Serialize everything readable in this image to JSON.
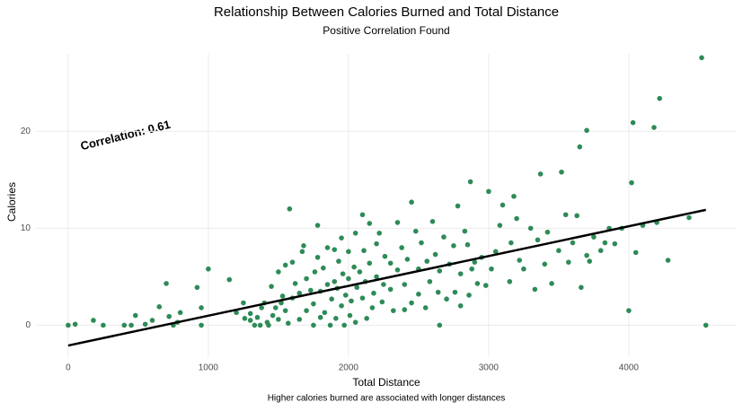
{
  "chart_data": {
    "type": "scatter",
    "title": "Relationship Between Calories Burned and Total Distance",
    "subtitle": "Positive Correlation Found",
    "x_label": "Total Distance",
    "y_label": "Calories",
    "caption": "Higher calories burned are associated with longer distances",
    "annotation": "Correlation: 0.61",
    "color": "#2e8b57",
    "xlim": [
      -230,
      4770
    ],
    "ylim": [
      -3.3,
      28
    ],
    "xticks": [
      0,
      1000,
      2000,
      3000,
      4000
    ],
    "yticks": [
      0,
      10,
      20
    ],
    "grid": true,
    "trend_line": {
      "color": "#000000",
      "x": [
        0,
        4550
      ],
      "y": [
        -2.1,
        11.9
      ]
    },
    "x": [
      0,
      50,
      180,
      250,
      400,
      450,
      480,
      550,
      600,
      650,
      700,
      720,
      750,
      780,
      800,
      1000,
      920,
      950,
      950,
      1150,
      1200,
      1250,
      1260,
      1300,
      1300,
      1330,
      1350,
      1370,
      1380,
      1400,
      1420,
      1430,
      1450,
      1460,
      1480,
      1500,
      1500,
      1520,
      1530,
      1550,
      1550,
      1570,
      1580,
      1600,
      1600,
      1620,
      1650,
      1650,
      1670,
      1680,
      1700,
      1700,
      1730,
      1750,
      1750,
      1760,
      1780,
      1780,
      1800,
      1800,
      1820,
      1830,
      1850,
      1850,
      1870,
      1880,
      1900,
      1900,
      1910,
      1920,
      1930,
      1950,
      1950,
      1960,
      1970,
      1980,
      2000,
      2000,
      2010,
      2020,
      2040,
      2050,
      2050,
      2060,
      2080,
      2100,
      2100,
      2110,
      2120,
      2130,
      2150,
      2150,
      2170,
      2180,
      2200,
      2200,
      2220,
      2240,
      2250,
      2260,
      2300,
      2300,
      2320,
      2350,
      2350,
      2380,
      2400,
      2400,
      2420,
      2450,
      2450,
      2480,
      2500,
      2500,
      2520,
      2550,
      2560,
      2580,
      2600,
      2620,
      2640,
      2650,
      2650,
      2680,
      2700,
      2720,
      2750,
      2760,
      2780,
      2800,
      2800,
      2830,
      2850,
      2860,
      2870,
      2880,
      2900,
      2920,
      2950,
      2980,
      3000,
      3020,
      3050,
      3080,
      3100,
      3150,
      3160,
      3180,
      3200,
      3220,
      3250,
      3300,
      3330,
      3350,
      3370,
      3400,
      3420,
      3450,
      3500,
      3520,
      3550,
      3570,
      3600,
      3630,
      3650,
      3660,
      3700,
      3700,
      3720,
      3750,
      3800,
      3830,
      3860,
      3900,
      3950,
      4000,
      4020,
      4030,
      4050,
      4100,
      4180,
      4200,
      4220,
      4280,
      4430,
      4520,
      4550
    ],
    "values": [
      0,
      0.1,
      0.5,
      0,
      0,
      0,
      1,
      0.1,
      0.5,
      1.9,
      4.3,
      0.9,
      0,
      0.3,
      1.3,
      5.8,
      3.9,
      0,
      1.8,
      4.7,
      1.3,
      2.3,
      0.7,
      0.5,
      1.2,
      0,
      0.8,
      0,
      1.8,
      2.3,
      0.3,
      0,
      4,
      1,
      1.8,
      5.5,
      0.6,
      2.3,
      3,
      6.2,
      1.5,
      0.2,
      12,
      6.5,
      2.8,
      4.3,
      3.3,
      0.6,
      7.6,
      8.2,
      1.5,
      4.8,
      3.6,
      2.2,
      0,
      5.5,
      7,
      10.3,
      3.5,
      0.8,
      5.9,
      1.3,
      8,
      4.2,
      0,
      2.7,
      7.8,
      4.5,
      0.7,
      3.8,
      6.6,
      9,
      2,
      5.3,
      0,
      3.1,
      7.6,
      4.8,
      1,
      2.5,
      6,
      9.5,
      0.3,
      3.9,
      5.5,
      11.4,
      2.8,
      7.7,
      4.5,
      0.7,
      10.5,
      6.4,
      1.8,
      3.3,
      8.4,
      5,
      9.5,
      2.4,
      4.2,
      7.1,
      6.4,
      3.7,
      1.5,
      10.6,
      5.7,
      8,
      4.2,
      1.6,
      6.8,
      12.7,
      2.3,
      9.7,
      5.8,
      3.2,
      8.5,
      1.8,
      6.6,
      4.5,
      10.7,
      7.3,
      3.4,
      0,
      5.6,
      9.1,
      2.7,
      6.3,
      8.2,
      3.4,
      12.3,
      5.3,
      2,
      9.7,
      8.3,
      3.1,
      14.8,
      5.8,
      6.5,
      4.3,
      7,
      4.1,
      13.8,
      5.8,
      7.6,
      10.3,
      12.4,
      4.5,
      8.5,
      13.3,
      11,
      6.7,
      5.8,
      10,
      3.7,
      8.8,
      15.6,
      6.3,
      9.6,
      4.3,
      7.7,
      15.8,
      11.4,
      6.5,
      8.5,
      11.3,
      18.4,
      3.9,
      20.1,
      7.2,
      6.6,
      9.1,
      7.7,
      8.5,
      10,
      8.4,
      10,
      1.5,
      14.7,
      20.9,
      7.5,
      10.3,
      20.4,
      10.6,
      23.4,
      6.7,
      11.1,
      27.6,
      0
    ]
  }
}
